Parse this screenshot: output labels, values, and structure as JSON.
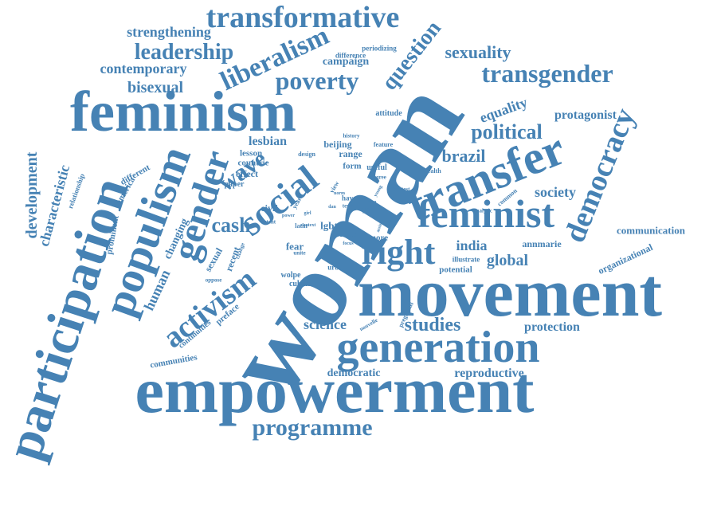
{
  "color": "#4682b4",
  "words": [
    "woman",
    "movement",
    "empowerment",
    "participation",
    "feminism",
    "generation",
    "transfer",
    "populism",
    "feminist",
    "gender",
    "social",
    "transformative",
    "democracy",
    "activism",
    "liberalism",
    "right",
    "transgender",
    "poverty",
    "question",
    "leadership",
    "programme",
    "political",
    "wave",
    "studies",
    "sexuality",
    "strengthening",
    "contemporary",
    "development",
    "characteristic",
    "bisexual",
    "cash",
    "science",
    "global",
    "india",
    "brazil",
    "society",
    "protection",
    "equality",
    "protagonist",
    "human",
    "democratic",
    "reproductive",
    "communication",
    "organizational",
    "lesbian",
    "campaign",
    "annmarie",
    "changing",
    "communities",
    "continuities",
    "preface",
    "prominent",
    "different",
    "america",
    "relationship",
    "fear",
    "cuban",
    "wolpe",
    "potential",
    "illustrate",
    "urban",
    "more",
    "issue",
    "latin",
    "lgbt",
    "civil",
    "paper",
    "effect",
    "countrie",
    "lesson",
    "design",
    "beijing",
    "range",
    "history",
    "attitude",
    "form",
    "useful",
    "health",
    "feature",
    "protest",
    "degree",
    "analytic",
    "common",
    "youth",
    "case",
    "have",
    "view",
    "term",
    "year",
    "focus",
    "power",
    "change",
    "sexual",
    "recent",
    "oppose",
    "extent",
    "unite",
    "girl",
    "preguntas",
    "nouvelle",
    "difference",
    "periodizing",
    "dan",
    "context",
    "norm",
    "young",
    "assist",
    "divide"
  ]
}
